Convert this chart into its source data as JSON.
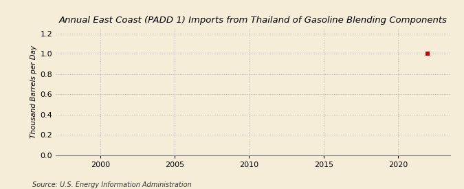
{
  "title": "Annual East Coast (PADD 1) Imports from Thailand of Gasoline Blending Components",
  "ylabel": "Thousand Barrels per Day",
  "source": "Source: U.S. Energy Information Administration",
  "background_color": "#f5edd8",
  "data_x": [
    2022
  ],
  "data_y": [
    1.0
  ],
  "marker_color": "#cc0000",
  "marker": "s",
  "marker_size": 4,
  "xlim": [
    1997,
    2023.5
  ],
  "ylim": [
    0.0,
    1.25
  ],
  "xticks": [
    2000,
    2005,
    2010,
    2015,
    2020
  ],
  "yticks": [
    0.0,
    0.2,
    0.4,
    0.6,
    0.8,
    1.0,
    1.2
  ],
  "grid_color": "#aaaaaa",
  "grid_style": ":",
  "grid_alpha": 0.9,
  "title_fontsize": 9.5,
  "label_fontsize": 7.5,
  "tick_fontsize": 8,
  "source_fontsize": 7
}
